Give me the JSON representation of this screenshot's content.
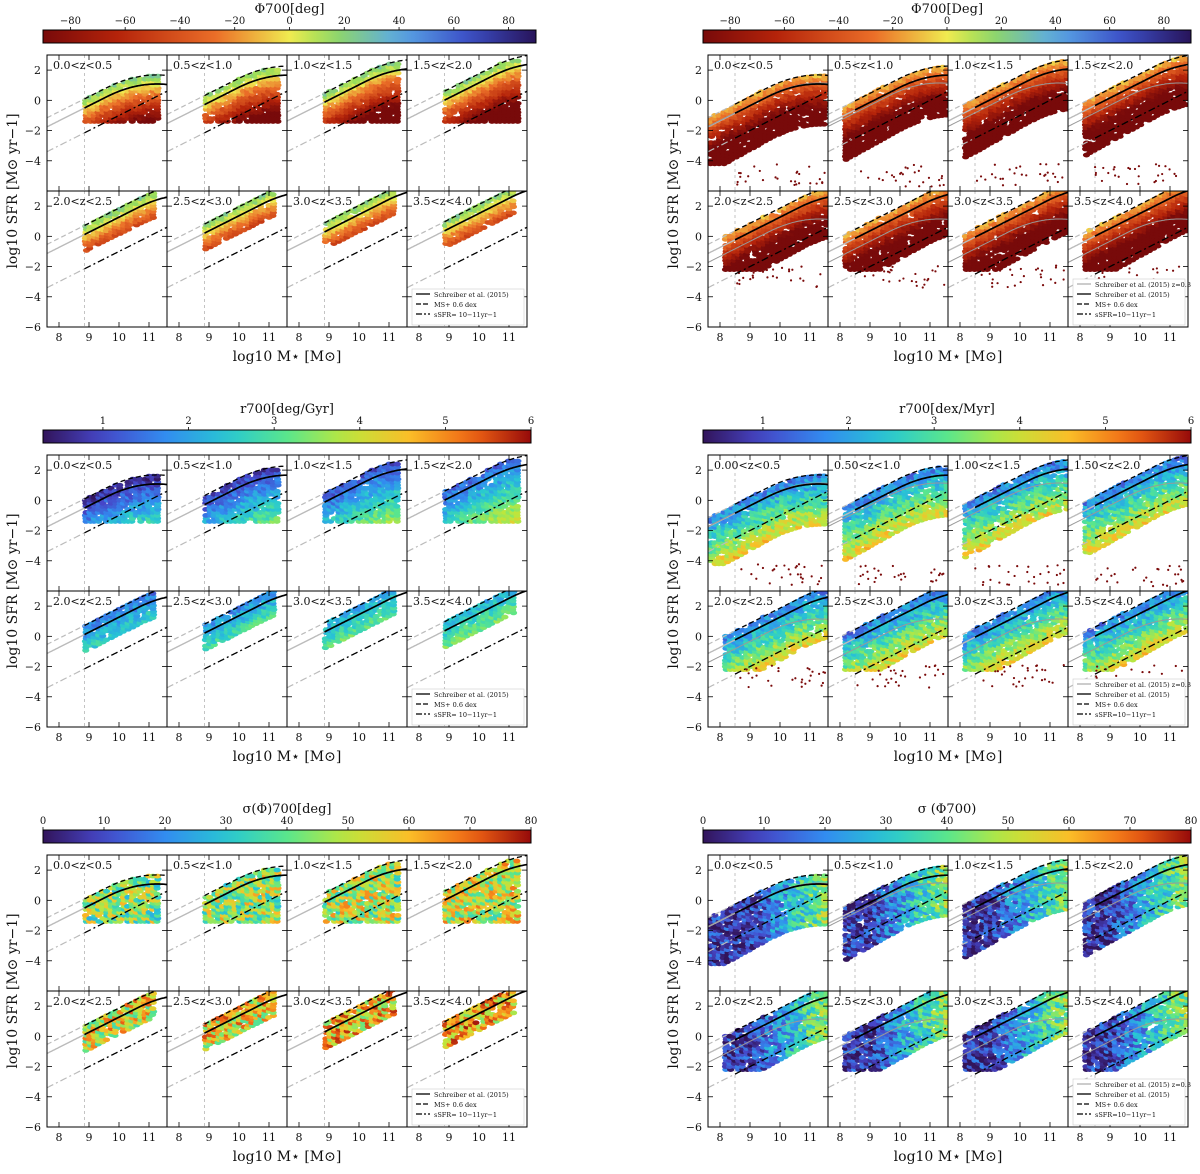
{
  "chart_data": [
    {
      "type": "heatmap",
      "colorbar": {
        "label": "Φ700[deg]",
        "ticks": [
          "−80",
          "−60",
          "−40",
          "−20",
          "0",
          "20",
          "40",
          "60",
          "80"
        ],
        "range": [
          -90,
          90
        ],
        "colormap": "RdYlBu"
      },
      "ylabel": "log10 SFR [M⊙ yr−1]",
      "xlabel": "log10 M⋆ [M⊙]",
      "xticks": [
        "8",
        "9",
        "10",
        "11"
      ],
      "yticks": [
        "2",
        "0",
        "−2",
        "−4",
        "−6"
      ],
      "xlim": [
        7.6,
        11.6
      ],
      "ylim": [
        -6,
        3
      ],
      "panels": [
        "0.0<z<0.5",
        "0.5<z<1.0",
        "1.0<z<1.5",
        "1.5<z<2.0",
        "2.0<z<2.5",
        "2.5<z<3.0",
        "3.0<z<3.5",
        "3.5<z<4.0"
      ],
      "legend": [
        "Schreiber et al. (2015)",
        "MS+ 0.6 dex",
        "sSFR= 10−11yr−1"
      ],
      "legend_position": "lower-right"
    },
    {
      "type": "heatmap",
      "colorbar": {
        "label": "Φ700[Deg]",
        "ticks": [
          "−80",
          "−60",
          "−40",
          "−20",
          "0",
          "20",
          "40",
          "60",
          "80"
        ],
        "range": [
          -90,
          90
        ],
        "colormap": "RdYlBu"
      },
      "ylabel": "log10 SFR [M⊙ yr−1]",
      "xlabel": "log10 M⋆ [M⊙]",
      "xticks": [
        "8",
        "9",
        "10",
        "11"
      ],
      "yticks": [
        "2",
        "0",
        "−2",
        "−4",
        "−6"
      ],
      "xlim": [
        7.6,
        11.6
      ],
      "ylim": [
        -6,
        3
      ],
      "panels": [
        "0.0<z<0.5",
        "0.5<z<1.0",
        "1.0<z<1.5",
        "1.5<z<2.0",
        "2.0<z<2.5",
        "2.5<z<3.0",
        "3.0<z<3.5",
        "3.5<z<4.0"
      ],
      "legend": [
        "Schreiber et al. (2015) z=0.3",
        "Schreiber et al. (2015)",
        "MS+ 0.6 dex",
        "sSFR=10−11yr−1"
      ],
      "legend_position": "lower-right"
    },
    {
      "type": "heatmap",
      "colorbar": {
        "label": "r700[deg/Gyr]",
        "ticks": [
          "1",
          "2",
          "3",
          "4",
          "5",
          "6"
        ],
        "range": [
          0.3,
          6
        ],
        "colormap": "turbo"
      },
      "ylabel": "log10 SFR [M⊙ yr−1]",
      "xlabel": "log10 M⋆ [M⊙]",
      "xticks": [
        "8",
        "9",
        "10",
        "11"
      ],
      "yticks": [
        "2",
        "0",
        "−2",
        "−4",
        "−6"
      ],
      "xlim": [
        7.6,
        11.6
      ],
      "ylim": [
        -6,
        3
      ],
      "panels": [
        "0.0<z<0.5",
        "0.5<z<1.0",
        "1.0<z<1.5",
        "1.5<z<2.0",
        "2.0<z<2.5",
        "2.5<z<3.0",
        "3.0<z<3.5",
        "3.5<z<4.0"
      ],
      "legend": [
        "Schreiber et al. (2015)",
        "MS+ 0.6 dex",
        "sSFR= 10−11yr−1"
      ],
      "legend_position": "lower-right"
    },
    {
      "type": "heatmap",
      "colorbar": {
        "label": "r700[dex/Myr]",
        "ticks": [
          "1",
          "2",
          "3",
          "4",
          "5",
          "6"
        ],
        "range": [
          0.3,
          6
        ],
        "colormap": "turbo"
      },
      "ylabel": "log10 SFR [M⊙ yr−1]",
      "xlabel": "log10 M⋆ [M⊙]",
      "xticks": [
        "8",
        "9",
        "10",
        "11"
      ],
      "yticks": [
        "2",
        "0",
        "−2",
        "−4",
        "−6"
      ],
      "xlim": [
        7.6,
        11.6
      ],
      "ylim": [
        -6,
        3
      ],
      "panels": [
        "0.00<z<0.5",
        "0.50<z<1.0",
        "1.00<z<1.5",
        "1.50<z<2.0",
        "2.0<z<2.5",
        "2.5<z<3.0",
        "3.0<z<3.5",
        "3.5<z<4.0"
      ],
      "legend": [
        "Schreiber et al. (2015) z=0.3",
        "Schreiber et al. (2015)",
        "MS+ 0.6 dex",
        "sSFR=10−11yr−1"
      ],
      "legend_position": "lower-right"
    },
    {
      "type": "heatmap",
      "colorbar": {
        "label": "σ(Φ)700[deg]",
        "ticks": [
          "0",
          "10",
          "20",
          "30",
          "40",
          "50",
          "60",
          "70",
          "80"
        ],
        "range": [
          0,
          80
        ],
        "colormap": "turbo"
      },
      "ylabel": "log10 SFR [M⊙ yr−1]",
      "xlabel": "log10 M⋆ [M⊙]",
      "xticks": [
        "8",
        "9",
        "10",
        "11"
      ],
      "yticks": [
        "2",
        "0",
        "−2",
        "−4",
        "−6"
      ],
      "xlim": [
        7.6,
        11.6
      ],
      "ylim": [
        -6,
        3
      ],
      "panels": [
        "0.0<z<0.5",
        "0.5<z<1.0",
        "1.0<z<1.5",
        "1.5<z<2.0",
        "2.0<z<2.5",
        "2.5<z<3.0",
        "3.0<z<3.5",
        "3.5<z<4.0"
      ],
      "legend": [
        "Schreiber et al. (2015)",
        "MS+ 0.6 dex",
        "sSFR= 10−11yr−1"
      ],
      "legend_position": "lower-right"
    },
    {
      "type": "heatmap",
      "colorbar": {
        "label": "σ (Φ700)",
        "ticks": [
          "0",
          "10",
          "20",
          "30",
          "40",
          "50",
          "60",
          "70",
          "80"
        ],
        "range": [
          0,
          80
        ],
        "colormap": "turbo"
      },
      "ylabel": "log10 SFR [M⊙ yr−1]",
      "xlabel": "log10 M⋆ [M⊙]",
      "xticks": [
        "8",
        "9",
        "10",
        "11"
      ],
      "yticks": [
        "2",
        "0",
        "−2",
        "−4",
        "−6"
      ],
      "xlim": [
        7.6,
        11.6
      ],
      "ylim": [
        -6,
        3
      ],
      "panels": [
        "0.0<z<0.5",
        "0.5<z<1.0",
        "1.0<z<1.5",
        "1.5<z<2.0",
        "2.0<z<2.5",
        "2.5<z<3.0",
        "3.0<z<3.5",
        "3.5<z<4.0"
      ],
      "legend": [
        "Schreiber et al. (2015) z=0.3",
        "Schreiber et al. (2015)",
        "MS+ 0.6 dex",
        "sSFR=10−11yr−1"
      ],
      "legend_position": "lower-right"
    }
  ]
}
